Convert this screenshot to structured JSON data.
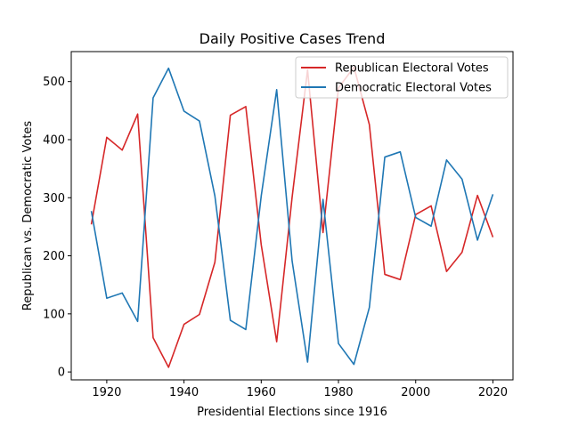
{
  "chart_data": {
    "type": "line",
    "title": "Daily Positive Cases Trend",
    "xlabel": "Presidential Elections since 1916",
    "ylabel": "Republican vs. Democratic Votes",
    "x": [
      1916,
      1920,
      1924,
      1928,
      1932,
      1936,
      1940,
      1944,
      1948,
      1952,
      1956,
      1960,
      1964,
      1968,
      1972,
      1976,
      1980,
      1984,
      1988,
      1992,
      1996,
      2000,
      2004,
      2008,
      2012,
      2016,
      2020
    ],
    "series": [
      {
        "name": "Republican Electoral Votes",
        "color": "#d62728",
        "values": [
          254,
          404,
          382,
          444,
          59,
          8,
          82,
          99,
          189,
          442,
          457,
          219,
          52,
          301,
          520,
          240,
          489,
          525,
          426,
          168,
          159,
          271,
          286,
          173,
          206,
          304,
          232
        ]
      },
      {
        "name": "Democratic Electoral Votes",
        "color": "#1f77b4",
        "values": [
          277,
          127,
          136,
          87,
          472,
          523,
          449,
          432,
          303,
          89,
          73,
          303,
          486,
          191,
          17,
          297,
          49,
          13,
          111,
          370,
          379,
          266,
          251,
          365,
          332,
          227,
          306
        ]
      }
    ],
    "x_ticks": [
      "1920",
      "1940",
      "1960",
      "1980",
      "2000",
      "2020"
    ],
    "y_ticks": [
      "0",
      "100",
      "200",
      "300",
      "400",
      "500"
    ],
    "xlim": [
      1910.8,
      2025.2
    ],
    "ylim": [
      -13.6,
      551.6
    ],
    "grid": false,
    "legend_position": "top-right"
  }
}
